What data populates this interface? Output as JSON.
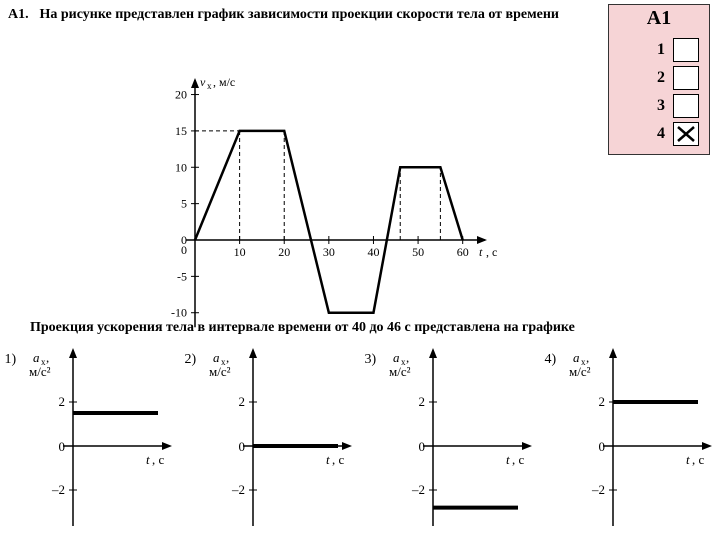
{
  "question": {
    "number": "А1.",
    "text": "На рисунке представлен график зависимости проекции скорости тела от времени",
    "subtext": "Проекция ускорения тела в интервале времени от 40 до 46 с представлена на графике"
  },
  "answer_panel": {
    "title": "A1",
    "rows": [
      {
        "num": "1",
        "checked": false
      },
      {
        "num": "2",
        "checked": false
      },
      {
        "num": "3",
        "checked": false
      },
      {
        "num": "4",
        "checked": true
      }
    ],
    "bg_color": "#f6d4d6"
  },
  "main_chart": {
    "type": "line",
    "ylabel": "vₓ, м/с",
    "xlabel": "t, с",
    "xlim": [
      0,
      65
    ],
    "ylim": [
      -12,
      22
    ],
    "xtick_vals": [
      10,
      20,
      30,
      40,
      50,
      60
    ],
    "xtick_labels": [
      "10",
      "20",
      "30",
      "40",
      "50",
      "60"
    ],
    "ytick_vals": [
      -10,
      -5,
      0,
      5,
      10,
      15,
      20
    ],
    "ytick_labels": [
      "-10",
      "-5",
      "0",
      "5",
      "10",
      "15",
      "20"
    ],
    "points": [
      [
        0,
        0
      ],
      [
        10,
        15
      ],
      [
        20,
        15
      ],
      [
        30,
        -10
      ],
      [
        40,
        -10
      ],
      [
        46,
        10
      ],
      [
        55,
        10
      ],
      [
        60,
        0
      ]
    ],
    "dashed_x": [
      10,
      20,
      46,
      55
    ],
    "line_color": "#000000",
    "axis_color": "#000000",
    "font_size": 12
  },
  "options": [
    {
      "num": "1)",
      "ylabel": "aₓ,\nм/с²",
      "xlabel": "t, с",
      "yticks": [
        -2,
        0,
        2
      ],
      "line_y": 1.5,
      "line_x0": 0,
      "line_x1": 1
    },
    {
      "num": "2)",
      "ylabel": "aₓ,\nм/с²",
      "xlabel": "t, с",
      "yticks": [
        -2,
        0,
        2
      ],
      "line_y": 0,
      "line_x0": 0,
      "line_x1": 1
    },
    {
      "num": "3)",
      "ylabel": "aₓ,\nм/с²",
      "xlabel": "t, с",
      "yticks": [
        -2,
        0,
        2
      ],
      "line_y": -2.8,
      "line_x0": 0,
      "line_x1": 1
    },
    {
      "num": "4)",
      "ylabel": "aₓ,\nм/с²",
      "xlabel": "t, с",
      "yticks": [
        -2,
        0,
        2
      ],
      "line_y": 2,
      "line_x0": 0,
      "line_x1": 1
    }
  ]
}
